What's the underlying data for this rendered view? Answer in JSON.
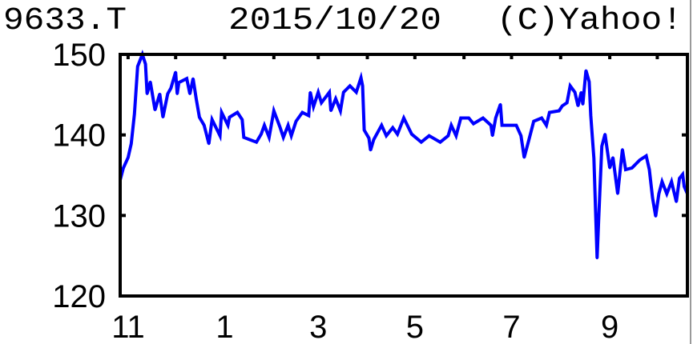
{
  "header": {
    "ticker": "9633.T",
    "date": "2015/10/20",
    "copyright": "(C)Yahoo!"
  },
  "chart_data": {
    "type": "line",
    "title": "",
    "xlabel": "",
    "ylabel": "",
    "ylim": [
      120,
      150
    ],
    "xlim": [
      "2014-10-27",
      "2015-10-20"
    ],
    "grid": false,
    "line_color": "#0000ff",
    "y_ticks": [
      {
        "value": 150,
        "label": "150"
      },
      {
        "value": 140,
        "label": "140"
      },
      {
        "value": 130,
        "label": "130"
      },
      {
        "value": 120,
        "label": "120"
      }
    ],
    "x_ticks": [
      {
        "date": "2014-11-01",
        "label": "11"
      },
      {
        "date": "2015-01-01",
        "label": "1"
      },
      {
        "date": "2015-03-01",
        "label": "3"
      },
      {
        "date": "2015-05-01",
        "label": "5"
      },
      {
        "date": "2015-07-01",
        "label": "7"
      },
      {
        "date": "2015-09-01",
        "label": "9"
      }
    ],
    "series": [
      {
        "points": [
          [
            "2014-10-27",
            134.4
          ],
          [
            "2014-10-29",
            135.9
          ],
          [
            "2014-11-01",
            137.2
          ],
          [
            "2014-11-03",
            138.9
          ],
          [
            "2014-11-05",
            142.6
          ],
          [
            "2014-11-07",
            148.5
          ],
          [
            "2014-11-10",
            150
          ],
          [
            "2014-11-12",
            148.8
          ],
          [
            "2014-11-13",
            145.1
          ],
          [
            "2014-11-15",
            146.6
          ],
          [
            "2014-11-18",
            143.1
          ],
          [
            "2014-11-21",
            145.1
          ],
          [
            "2014-11-23",
            142.2
          ],
          [
            "2014-11-26",
            145.1
          ],
          [
            "2014-11-28",
            145.8
          ],
          [
            "2014-12-01",
            147.8
          ],
          [
            "2014-12-02",
            145.1
          ],
          [
            "2014-12-03",
            146.5
          ],
          [
            "2014-12-08",
            147
          ],
          [
            "2014-12-10",
            145.1
          ],
          [
            "2014-12-12",
            147
          ],
          [
            "2014-12-14",
            144.5
          ],
          [
            "2014-12-16",
            142.2
          ],
          [
            "2014-12-19",
            141.2
          ],
          [
            "2014-12-22",
            138.9
          ],
          [
            "2014-12-24",
            141.9
          ],
          [
            "2014-12-29",
            139.9
          ],
          [
            "2014-12-30",
            142.8
          ],
          [
            "2015-01-03",
            141.2
          ],
          [
            "2015-01-04",
            142.2
          ],
          [
            "2015-01-09",
            142.8
          ],
          [
            "2015-01-12",
            141.9
          ],
          [
            "2015-01-13",
            139.7
          ],
          [
            "2015-01-17",
            139.4
          ],
          [
            "2015-01-21",
            139.1
          ],
          [
            "2015-01-24",
            140.1
          ],
          [
            "2015-01-26",
            141.2
          ],
          [
            "2015-01-29",
            139.7
          ],
          [
            "2015-02-01",
            143
          ],
          [
            "2015-02-05",
            140.9
          ],
          [
            "2015-02-07",
            139.7
          ],
          [
            "2015-02-10",
            141.2
          ],
          [
            "2015-02-12",
            139.9
          ],
          [
            "2015-02-15",
            141.7
          ],
          [
            "2015-02-19",
            142.8
          ],
          [
            "2015-02-23",
            142.4
          ],
          [
            "2015-02-24",
            145.3
          ],
          [
            "2015-02-26",
            143.5
          ],
          [
            "2015-03-01",
            145.3
          ],
          [
            "2015-03-03",
            144
          ],
          [
            "2015-03-08",
            145.3
          ],
          [
            "2015-03-09",
            143
          ],
          [
            "2015-03-12",
            144.5
          ],
          [
            "2015-03-15",
            143
          ],
          [
            "2015-03-17",
            145.3
          ],
          [
            "2015-03-21",
            146.1
          ],
          [
            "2015-03-25",
            145.3
          ],
          [
            "2015-03-28",
            147.1
          ],
          [
            "2015-03-29",
            146.1
          ],
          [
            "2015-03-30",
            140.6
          ],
          [
            "2015-04-02",
            139.6
          ],
          [
            "2015-04-03",
            138.1
          ],
          [
            "2015-04-05",
            139.4
          ],
          [
            "2015-04-10",
            141.2
          ],
          [
            "2015-04-13",
            139.9
          ],
          [
            "2015-04-17",
            140.9
          ],
          [
            "2015-04-20",
            140.1
          ],
          [
            "2015-04-24",
            142.1
          ],
          [
            "2015-04-29",
            140.1
          ],
          [
            "2015-05-05",
            139.1
          ],
          [
            "2015-05-10",
            139.9
          ],
          [
            "2015-05-17",
            139.1
          ],
          [
            "2015-05-22",
            139.9
          ],
          [
            "2015-05-24",
            141.2
          ],
          [
            "2015-05-27",
            139.9
          ],
          [
            "2015-05-30",
            142.1
          ],
          [
            "2015-06-04",
            142.1
          ],
          [
            "2015-06-07",
            141.4
          ],
          [
            "2015-06-13",
            142.1
          ],
          [
            "2015-06-18",
            141.2
          ],
          [
            "2015-06-19",
            139.9
          ],
          [
            "2015-06-21",
            142.1
          ],
          [
            "2015-06-24",
            143.8
          ],
          [
            "2015-06-25",
            141.2
          ],
          [
            "2015-07-04",
            141.2
          ],
          [
            "2015-07-07",
            139.9
          ],
          [
            "2015-07-09",
            137.2
          ],
          [
            "2015-07-12",
            139.4
          ],
          [
            "2015-07-15",
            141.7
          ],
          [
            "2015-07-20",
            142.1
          ],
          [
            "2015-07-23",
            141.2
          ],
          [
            "2015-07-25",
            142.8
          ],
          [
            "2015-07-31",
            143
          ],
          [
            "2015-08-02",
            143.6
          ],
          [
            "2015-08-05",
            144
          ],
          [
            "2015-08-07",
            146.1
          ],
          [
            "2015-08-10",
            145.3
          ],
          [
            "2015-08-12",
            143.6
          ],
          [
            "2015-08-14",
            145.3
          ],
          [
            "2015-08-15",
            143.8
          ],
          [
            "2015-08-17",
            148
          ],
          [
            "2015-08-19",
            146.6
          ],
          [
            "2015-08-20",
            142.4
          ],
          [
            "2015-08-22",
            137.1
          ],
          [
            "2015-08-24",
            124.7
          ],
          [
            "2015-08-25",
            129.6
          ],
          [
            "2015-08-27",
            138.6
          ],
          [
            "2015-08-29",
            140.1
          ],
          [
            "2015-09-01",
            135.9
          ],
          [
            "2015-09-03",
            137.2
          ],
          [
            "2015-09-06",
            132.7
          ],
          [
            "2015-09-09",
            138.2
          ],
          [
            "2015-09-11",
            135.7
          ],
          [
            "2015-09-15",
            135.9
          ],
          [
            "2015-09-20",
            136.9
          ],
          [
            "2015-09-24",
            137.4
          ],
          [
            "2015-09-26",
            135.7
          ],
          [
            "2015-09-28",
            132.2
          ],
          [
            "2015-09-30",
            129.9
          ],
          [
            "2015-10-02",
            132.7
          ],
          [
            "2015-10-04",
            134.2
          ],
          [
            "2015-10-07",
            132.7
          ],
          [
            "2015-10-10",
            134.2
          ],
          [
            "2015-10-13",
            131.7
          ],
          [
            "2015-10-15",
            134.6
          ],
          [
            "2015-10-17",
            135.1
          ],
          [
            "2015-10-18",
            133.6
          ],
          [
            "2015-10-20",
            132.7
          ]
        ]
      }
    ]
  }
}
